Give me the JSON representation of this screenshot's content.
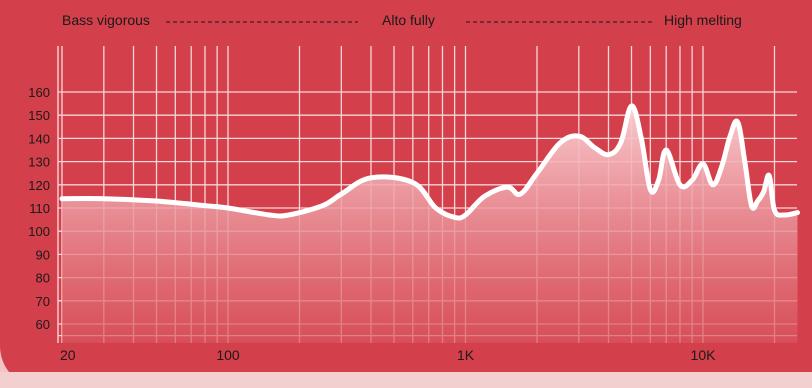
{
  "header": {
    "bass_label": "Bass vigorous",
    "mid_label": "Alto fully",
    "treble_label": "High melting"
  },
  "colors": {
    "panel": "#d33f4a",
    "grid": "#f7d6d8",
    "curve": "#ffffff",
    "fill_top": "#f8cccf",
    "fill_bottom": "#d9555f",
    "text": "#1a1a1a"
  },
  "chart_data": {
    "type": "area",
    "xscale": "log",
    "xlim": [
      20,
      25000
    ],
    "ylim": [
      55,
      170
    ],
    "grid": true,
    "x_tick_labels": [
      {
        "value": 20,
        "label": "20"
      },
      {
        "value": 100,
        "label": "100"
      },
      {
        "value": 1000,
        "label": "1K"
      },
      {
        "value": 10000,
        "label": "10K"
      }
    ],
    "y_ticks": [
      60,
      70,
      80,
      90,
      100,
      110,
      120,
      130,
      140,
      150,
      160
    ],
    "x_grid": [
      20,
      30,
      40,
      50,
      60,
      70,
      80,
      90,
      100,
      200,
      300,
      400,
      500,
      600,
      700,
      800,
      900,
      1000,
      2000,
      3000,
      4000,
      5000,
      6000,
      7000,
      8000,
      9000,
      10000,
      20000
    ],
    "series": [
      {
        "x": [
          20,
          30,
          50,
          80,
          100,
          150,
          180,
          250,
          300,
          400,
          600,
          750,
          900,
          1000,
          1200,
          1500,
          1700,
          2000,
          2500,
          3000,
          3500,
          4000,
          4500,
          5000,
          5500,
          6000,
          6500,
          7000,
          8000,
          9000,
          10000,
          11000,
          12000,
          13000,
          14000,
          15000,
          16000,
          17000,
          18000,
          19000,
          20000,
          22000,
          25000
        ],
        "y": [
          114,
          114,
          113,
          111,
          110,
          107,
          107,
          111,
          116,
          123,
          121,
          110,
          106,
          107,
          115,
          119,
          116,
          125,
          138,
          141,
          136,
          133,
          138,
          154,
          140,
          118,
          122,
          135,
          120,
          122,
          129,
          120,
          128,
          141,
          147,
          130,
          111,
          113,
          117,
          124,
          109,
          107,
          108
        ]
      }
    ]
  }
}
